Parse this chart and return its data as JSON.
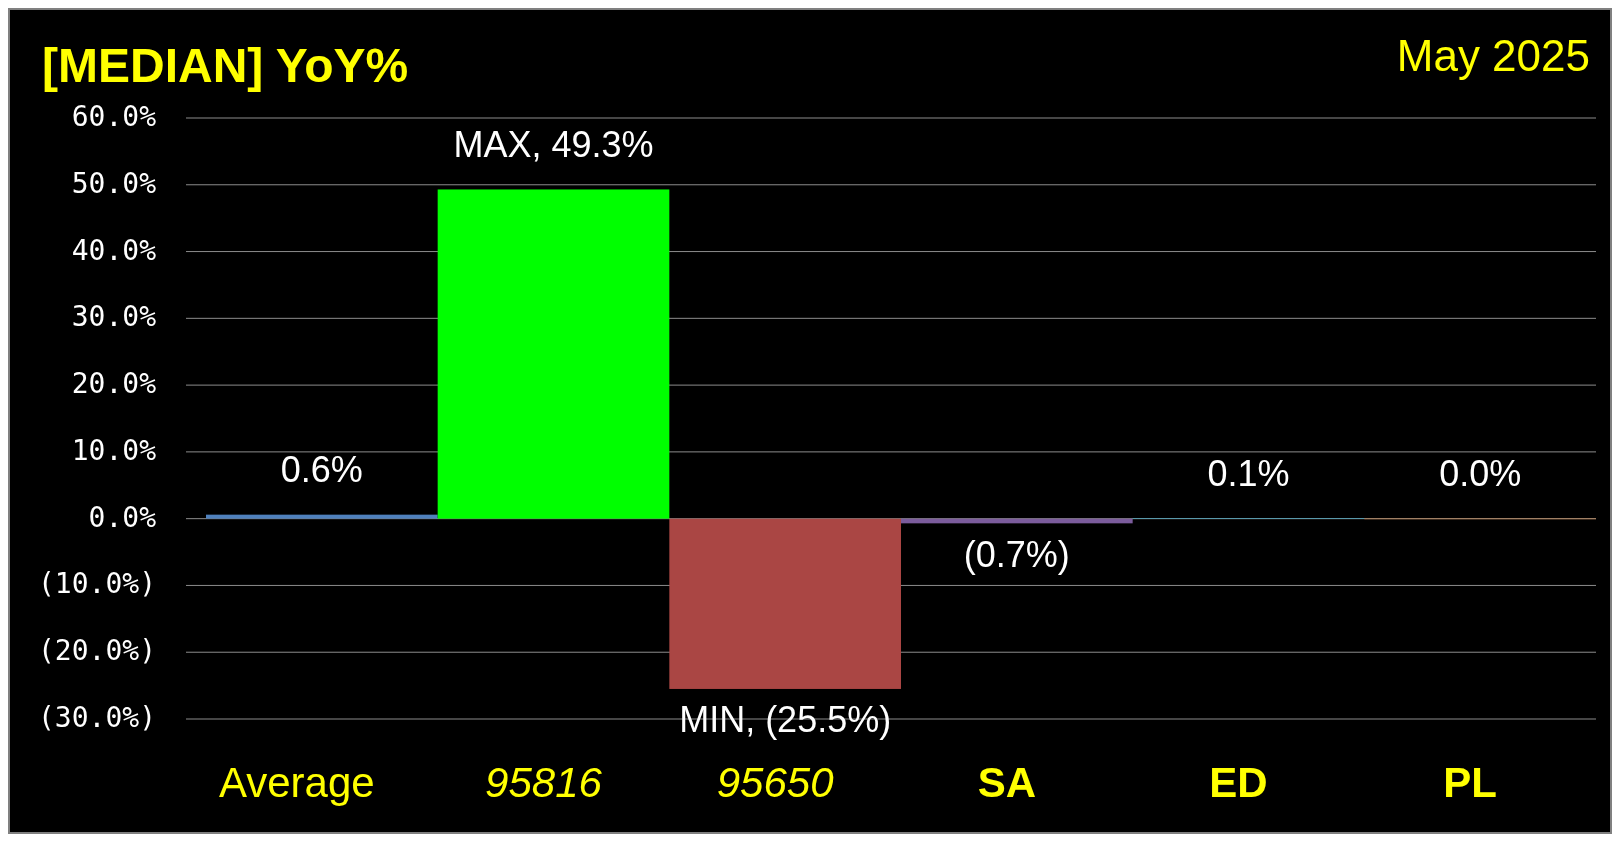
{
  "chart_data": {
    "type": "bar",
    "title": "[MEDIAN] YoY%",
    "subtitle": "May 2025",
    "categories": [
      "Average",
      "95816",
      "95650",
      "SA",
      "ED",
      "PL"
    ],
    "values": [
      0.6,
      49.3,
      -25.5,
      -0.7,
      0.1,
      0.0
    ],
    "colors": [
      "#4f81bd",
      "#00ff00",
      "#aa4644",
      "#7b5c9c",
      "#4bacc6",
      "#f79646"
    ],
    "value_labels": [
      "0.6%",
      "MAX,  49.3%",
      "MIN, (25.5%)",
      "(0.7%)",
      "0.1%",
      "0.0%"
    ],
    "ylim": [
      -30,
      60
    ],
    "yticks": [
      {
        "value": -30,
        "label": "(30.0%)"
      },
      {
        "value": -20,
        "label": "(20.0%)"
      },
      {
        "value": -10,
        "label": "(10.0%)"
      },
      {
        "value": 0,
        "label": "0.0%"
      },
      {
        "value": 10,
        "label": "10.0%"
      },
      {
        "value": 20,
        "label": "20.0%"
      },
      {
        "value": 30,
        "label": "30.0%"
      },
      {
        "value": 40,
        "label": "40.0%"
      },
      {
        "value": 50,
        "label": "50.0%"
      },
      {
        "value": 60,
        "label": "60.0%"
      }
    ],
    "grid": true
  }
}
